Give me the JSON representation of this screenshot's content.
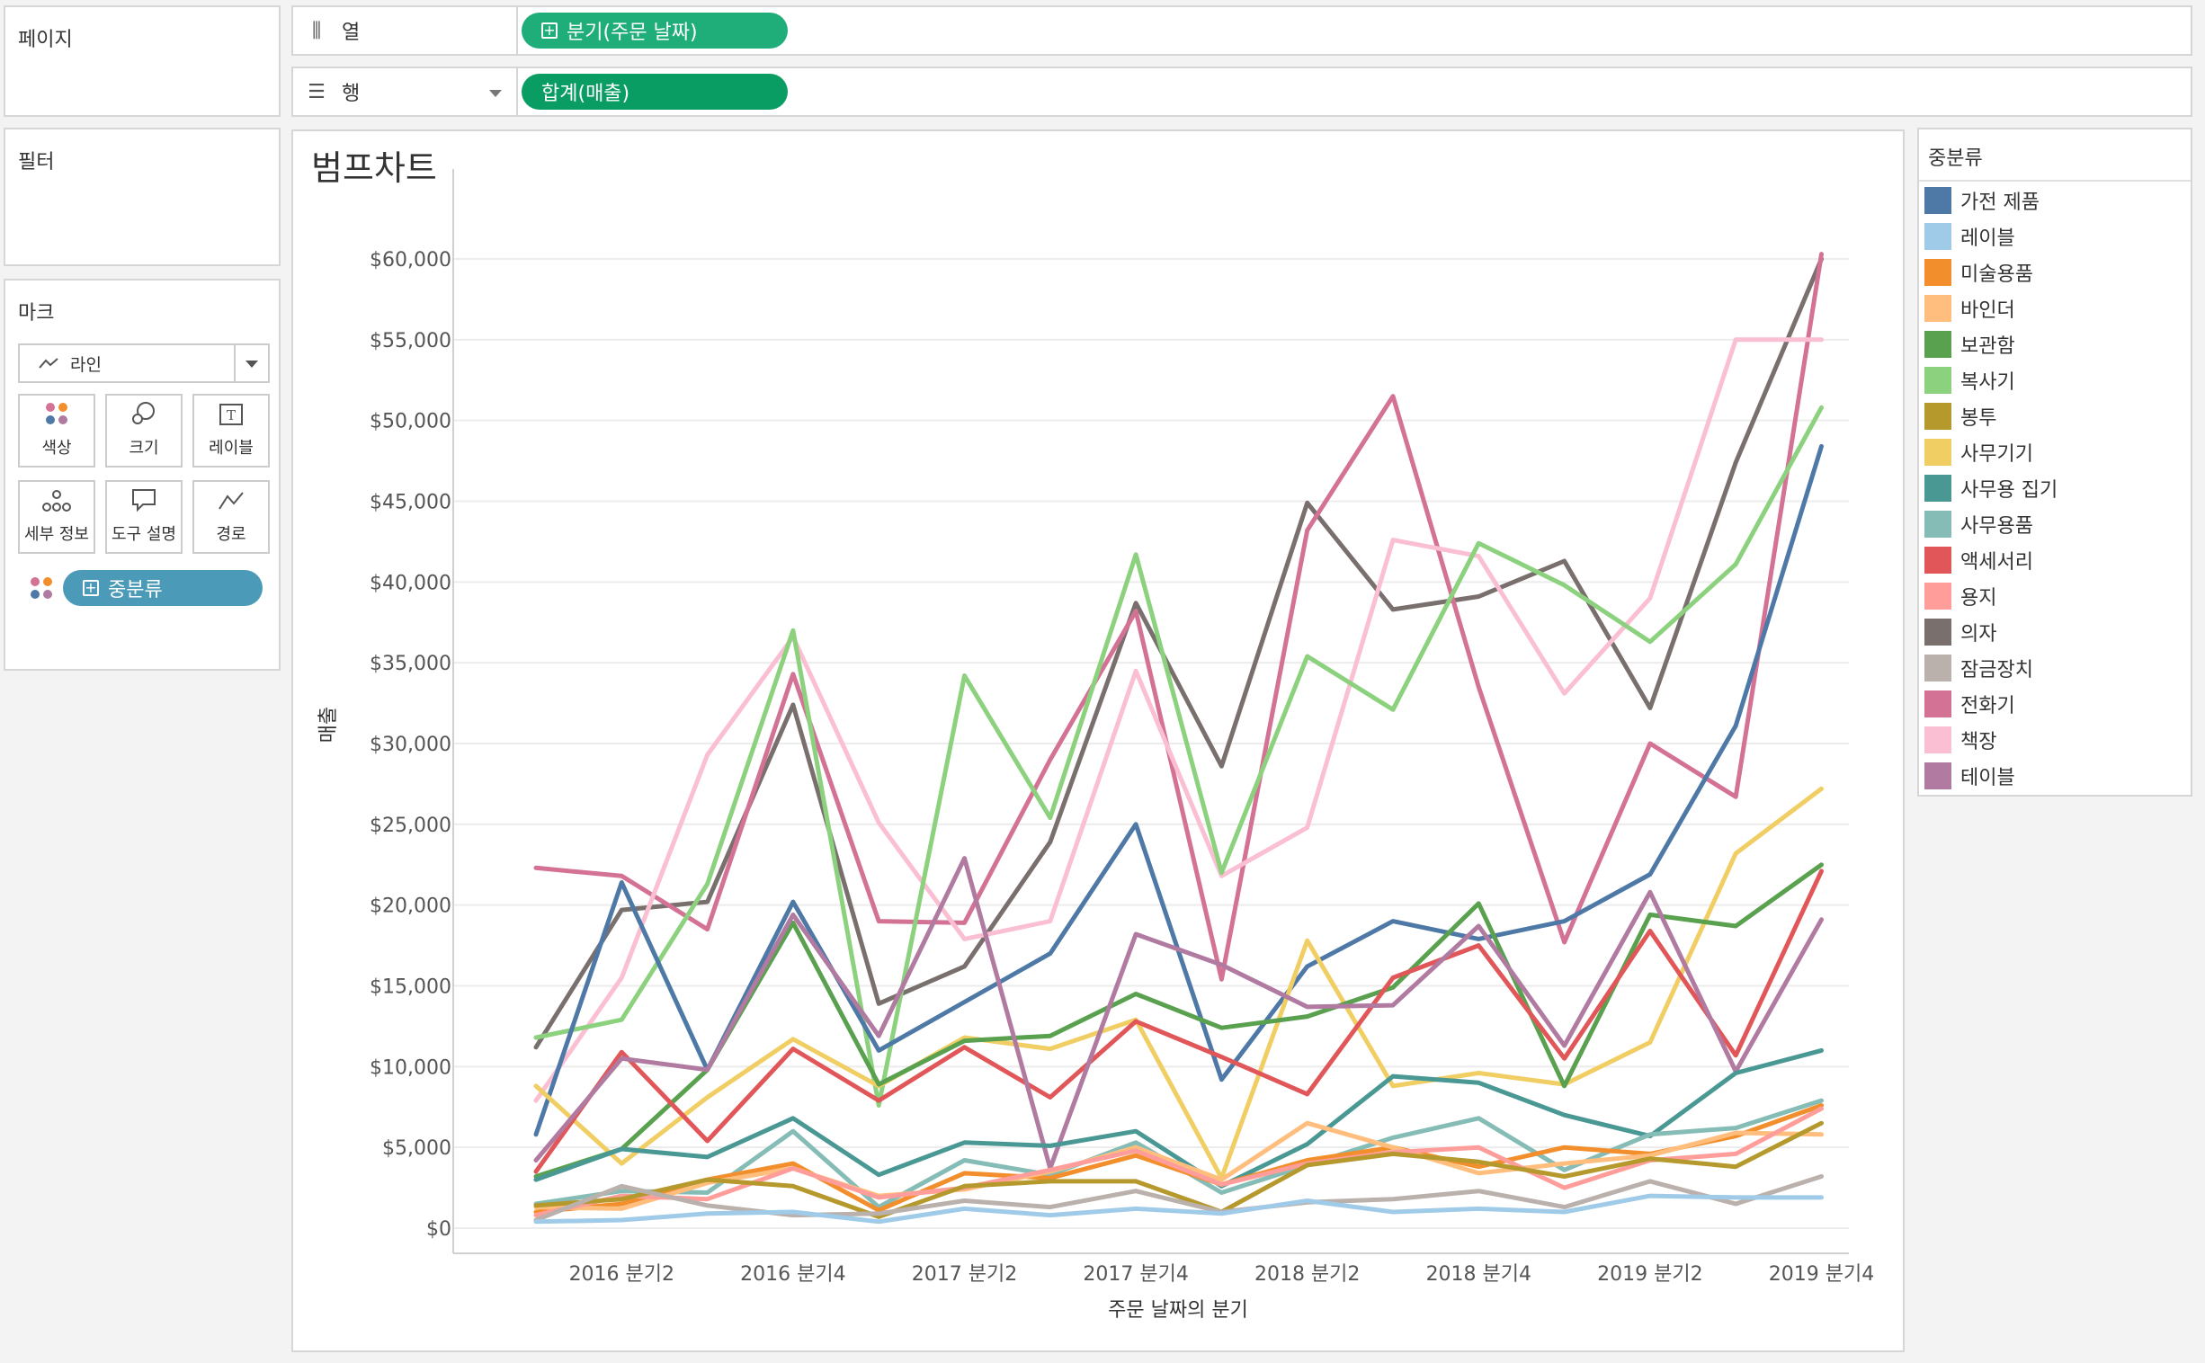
{
  "shelves": {
    "pages_label": "페이지",
    "columns": {
      "label": "열",
      "pill": "분기(주문 날짜)"
    },
    "rows": {
      "label": "행",
      "pill": "합계(매출)"
    }
  },
  "filters": {
    "label": "필터"
  },
  "marks": {
    "label": "마크",
    "mark_type": "라인",
    "buttons": {
      "color": "색상",
      "size": "크기",
      "label": "레이블",
      "detail": "세부 정보",
      "tooltip": "도구 설명",
      "path": "경로"
    },
    "color_pill": "중분류"
  },
  "legend": {
    "title": "중분류",
    "items": [
      {
        "name": "가전 제품",
        "color": "#4e79a7"
      },
      {
        "name": "레이블",
        "color": "#a0cbe8"
      },
      {
        "name": "미술용품",
        "color": "#f28e2b"
      },
      {
        "name": "바인더",
        "color": "#ffbe7d"
      },
      {
        "name": "보관함",
        "color": "#59a14f"
      },
      {
        "name": "복사기",
        "color": "#8cd17d"
      },
      {
        "name": "봉투",
        "color": "#b6992d"
      },
      {
        "name": "사무기기",
        "color": "#f1ce63"
      },
      {
        "name": "사무용 집기",
        "color": "#499894"
      },
      {
        "name": "사무용품",
        "color": "#86bcb6"
      },
      {
        "name": "액세서리",
        "color": "#e15759"
      },
      {
        "name": "용지",
        "color": "#ff9d9a"
      },
      {
        "name": "의자",
        "color": "#79706e"
      },
      {
        "name": "잠금장치",
        "color": "#bab0ac"
      },
      {
        "name": "전화기",
        "color": "#d37295"
      },
      {
        "name": "책장",
        "color": "#fabfd2"
      },
      {
        "name": "테이블",
        "color": "#b07aa1"
      }
    ]
  },
  "chart_data": {
    "type": "line",
    "title": "범프차트",
    "xlabel": "주문 날짜의 분기",
    "ylabel": "매출",
    "x": [
      "2016 분기1",
      "2016 분기2",
      "2016 분기3",
      "2016 분기4",
      "2017 분기1",
      "2017 분기2",
      "2017 분기3",
      "2017 분기4",
      "2018 분기1",
      "2018 분기2",
      "2018 분기3",
      "2018 분기4",
      "2019 분기1",
      "2019 분기2",
      "2019 분기3",
      "2019 분기4"
    ],
    "x_tick_labels": [
      "2016 분기2",
      "2016 분기4",
      "2017 분기2",
      "2017 분기4",
      "2018 분기2",
      "2018 분기4",
      "2019 분기2",
      "2019 분기4"
    ],
    "ylim": [
      0,
      60000
    ],
    "y_ticks": [
      {
        "value": 0,
        "label": "$0"
      },
      {
        "value": 5000,
        "label": "$5,000"
      },
      {
        "value": 10000,
        "label": "$10,000"
      },
      {
        "value": 15000,
        "label": "$15,000"
      },
      {
        "value": 20000,
        "label": "$20,000"
      },
      {
        "value": 25000,
        "label": "$25,000"
      },
      {
        "value": 30000,
        "label": "$30,000"
      },
      {
        "value": 35000,
        "label": "$35,000"
      },
      {
        "value": 40000,
        "label": "$40,000"
      },
      {
        "value": 45000,
        "label": "$45,000"
      },
      {
        "value": 50000,
        "label": "$50,000"
      },
      {
        "value": 55000,
        "label": "$55,000"
      },
      {
        "value": 60000,
        "label": "$60,000"
      }
    ],
    "grid": true,
    "series": [
      {
        "name": "의자",
        "values": [
          11200,
          19700,
          20200,
          32400,
          13900,
          16200,
          23900,
          38700,
          28600,
          44900,
          38300,
          39100,
          41300,
          32200,
          47400,
          60000
        ]
      },
      {
        "name": "전화기",
        "values": [
          22300,
          21800,
          18500,
          34300,
          19000,
          18900,
          29000,
          38200,
          15400,
          43200,
          51500,
          33500,
          17700,
          30000,
          26700,
          60300
        ]
      },
      {
        "name": "책장",
        "values": [
          7900,
          15500,
          29300,
          36600,
          25100,
          17900,
          19000,
          34500,
          21800,
          24800,
          42600,
          41600,
          33100,
          39000,
          55000,
          55000
        ]
      },
      {
        "name": "복사기",
        "values": [
          11800,
          12900,
          21300,
          37000,
          7600,
          34200,
          25400,
          41700,
          22000,
          35400,
          32100,
          42400,
          39800,
          36300,
          41100,
          50800
        ]
      },
      {
        "name": "가전 제품",
        "values": [
          5800,
          21400,
          9800,
          20200,
          11000,
          14000,
          17000,
          25000,
          9200,
          16200,
          19000,
          17900,
          19000,
          21900,
          31100,
          48400
        ]
      },
      {
        "name": "사무기기",
        "values": [
          8800,
          4000,
          8100,
          11700,
          8800,
          11800,
          11100,
          12900,
          3100,
          17800,
          8800,
          9600,
          8900,
          11500,
          23200,
          27200
        ]
      },
      {
        "name": "보관함",
        "values": [
          3200,
          4900,
          9800,
          18900,
          8900,
          11600,
          11900,
          14500,
          12400,
          13100,
          14900,
          20100,
          8800,
          19400,
          18700,
          22500
        ]
      },
      {
        "name": "액세서리",
        "values": [
          3500,
          10900,
          5400,
          11100,
          7900,
          11200,
          8100,
          12800,
          10600,
          8300,
          15500,
          17500,
          10500,
          18400,
          10700,
          22100
        ]
      },
      {
        "name": "테이블",
        "values": [
          4200,
          10500,
          9800,
          19400,
          11900,
          22900,
          3700,
          18200,
          16300,
          13700,
          13800,
          18700,
          11300,
          20800,
          9700,
          19100
        ]
      },
      {
        "name": "사무용 집기",
        "values": [
          3000,
          4900,
          4400,
          6800,
          3300,
          5300,
          5100,
          6000,
          2600,
          5200,
          9400,
          9000,
          7000,
          5700,
          9600,
          11000
        ]
      },
      {
        "name": "사무용품",
        "values": [
          1500,
          2300,
          2200,
          6000,
          1300,
          4200,
          3300,
          5300,
          2200,
          3900,
          5600,
          6800,
          3600,
          5800,
          6200,
          7900
        ]
      },
      {
        "name": "미술용품",
        "values": [
          1000,
          1500,
          3000,
          4000,
          1100,
          3400,
          3100,
          4500,
          2700,
          4200,
          5000,
          3800,
          5000,
          4600,
          5700,
          7600
        ]
      },
      {
        "name": "바인더",
        "values": [
          1300,
          1200,
          2800,
          3700,
          2000,
          2400,
          3500,
          5000,
          3000,
          6500,
          5000,
          3400,
          4000,
          4500,
          5900,
          5800
        ]
      },
      {
        "name": "용지",
        "values": [
          800,
          2000,
          1800,
          3700,
          1900,
          2500,
          3600,
          4800,
          2700,
          4000,
          4700,
          5000,
          2500,
          4200,
          4600,
          7400
        ]
      },
      {
        "name": "봉투",
        "values": [
          1400,
          1800,
          3000,
          2600,
          700,
          2600,
          2900,
          2900,
          1000,
          3900,
          4600,
          4100,
          3200,
          4300,
          3800,
          6500
        ]
      },
      {
        "name": "잠금장치",
        "values": [
          500,
          2600,
          1400,
          800,
          900,
          1700,
          1300,
          2300,
          1000,
          1600,
          1800,
          2300,
          1300,
          2900,
          1500,
          3200
        ]
      },
      {
        "name": "레이블",
        "values": [
          400,
          500,
          900,
          1000,
          400,
          1200,
          800,
          1200,
          900,
          1700,
          1000,
          1200,
          1000,
          2000,
          1900,
          1900
        ]
      }
    ]
  }
}
